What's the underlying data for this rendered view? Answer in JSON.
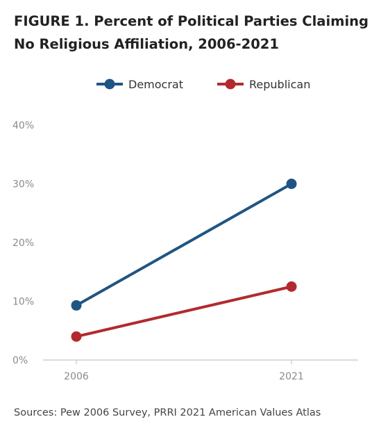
{
  "figure": {
    "title_line1": "FIGURE 1. Percent of Political Parties Claiming",
    "title_line2": "No Religious Affiliation, 2006-2021",
    "source": "Sources: Pew 2006 Survey, PRRI 2021 American Values Atlas"
  },
  "chart_data": {
    "type": "line",
    "title": "FIGURE 1. Percent of Political Parties Claiming No Religious Affiliation, 2006-2021",
    "x": [
      "2006",
      "2021"
    ],
    "series": [
      {
        "name": "Democrat",
        "color": "#1f5583",
        "values": [
          9.3,
          30
        ]
      },
      {
        "name": "Republican",
        "color": "#b22a2e",
        "values": [
          4,
          12.5
        ]
      }
    ],
    "y_ticks": [
      0,
      10,
      20,
      30,
      40
    ],
    "y_tick_labels": [
      "0%",
      "10%",
      "20%",
      "30%",
      "40%"
    ],
    "ylim": [
      0,
      40
    ],
    "grid": false,
    "legend_position": "top"
  }
}
